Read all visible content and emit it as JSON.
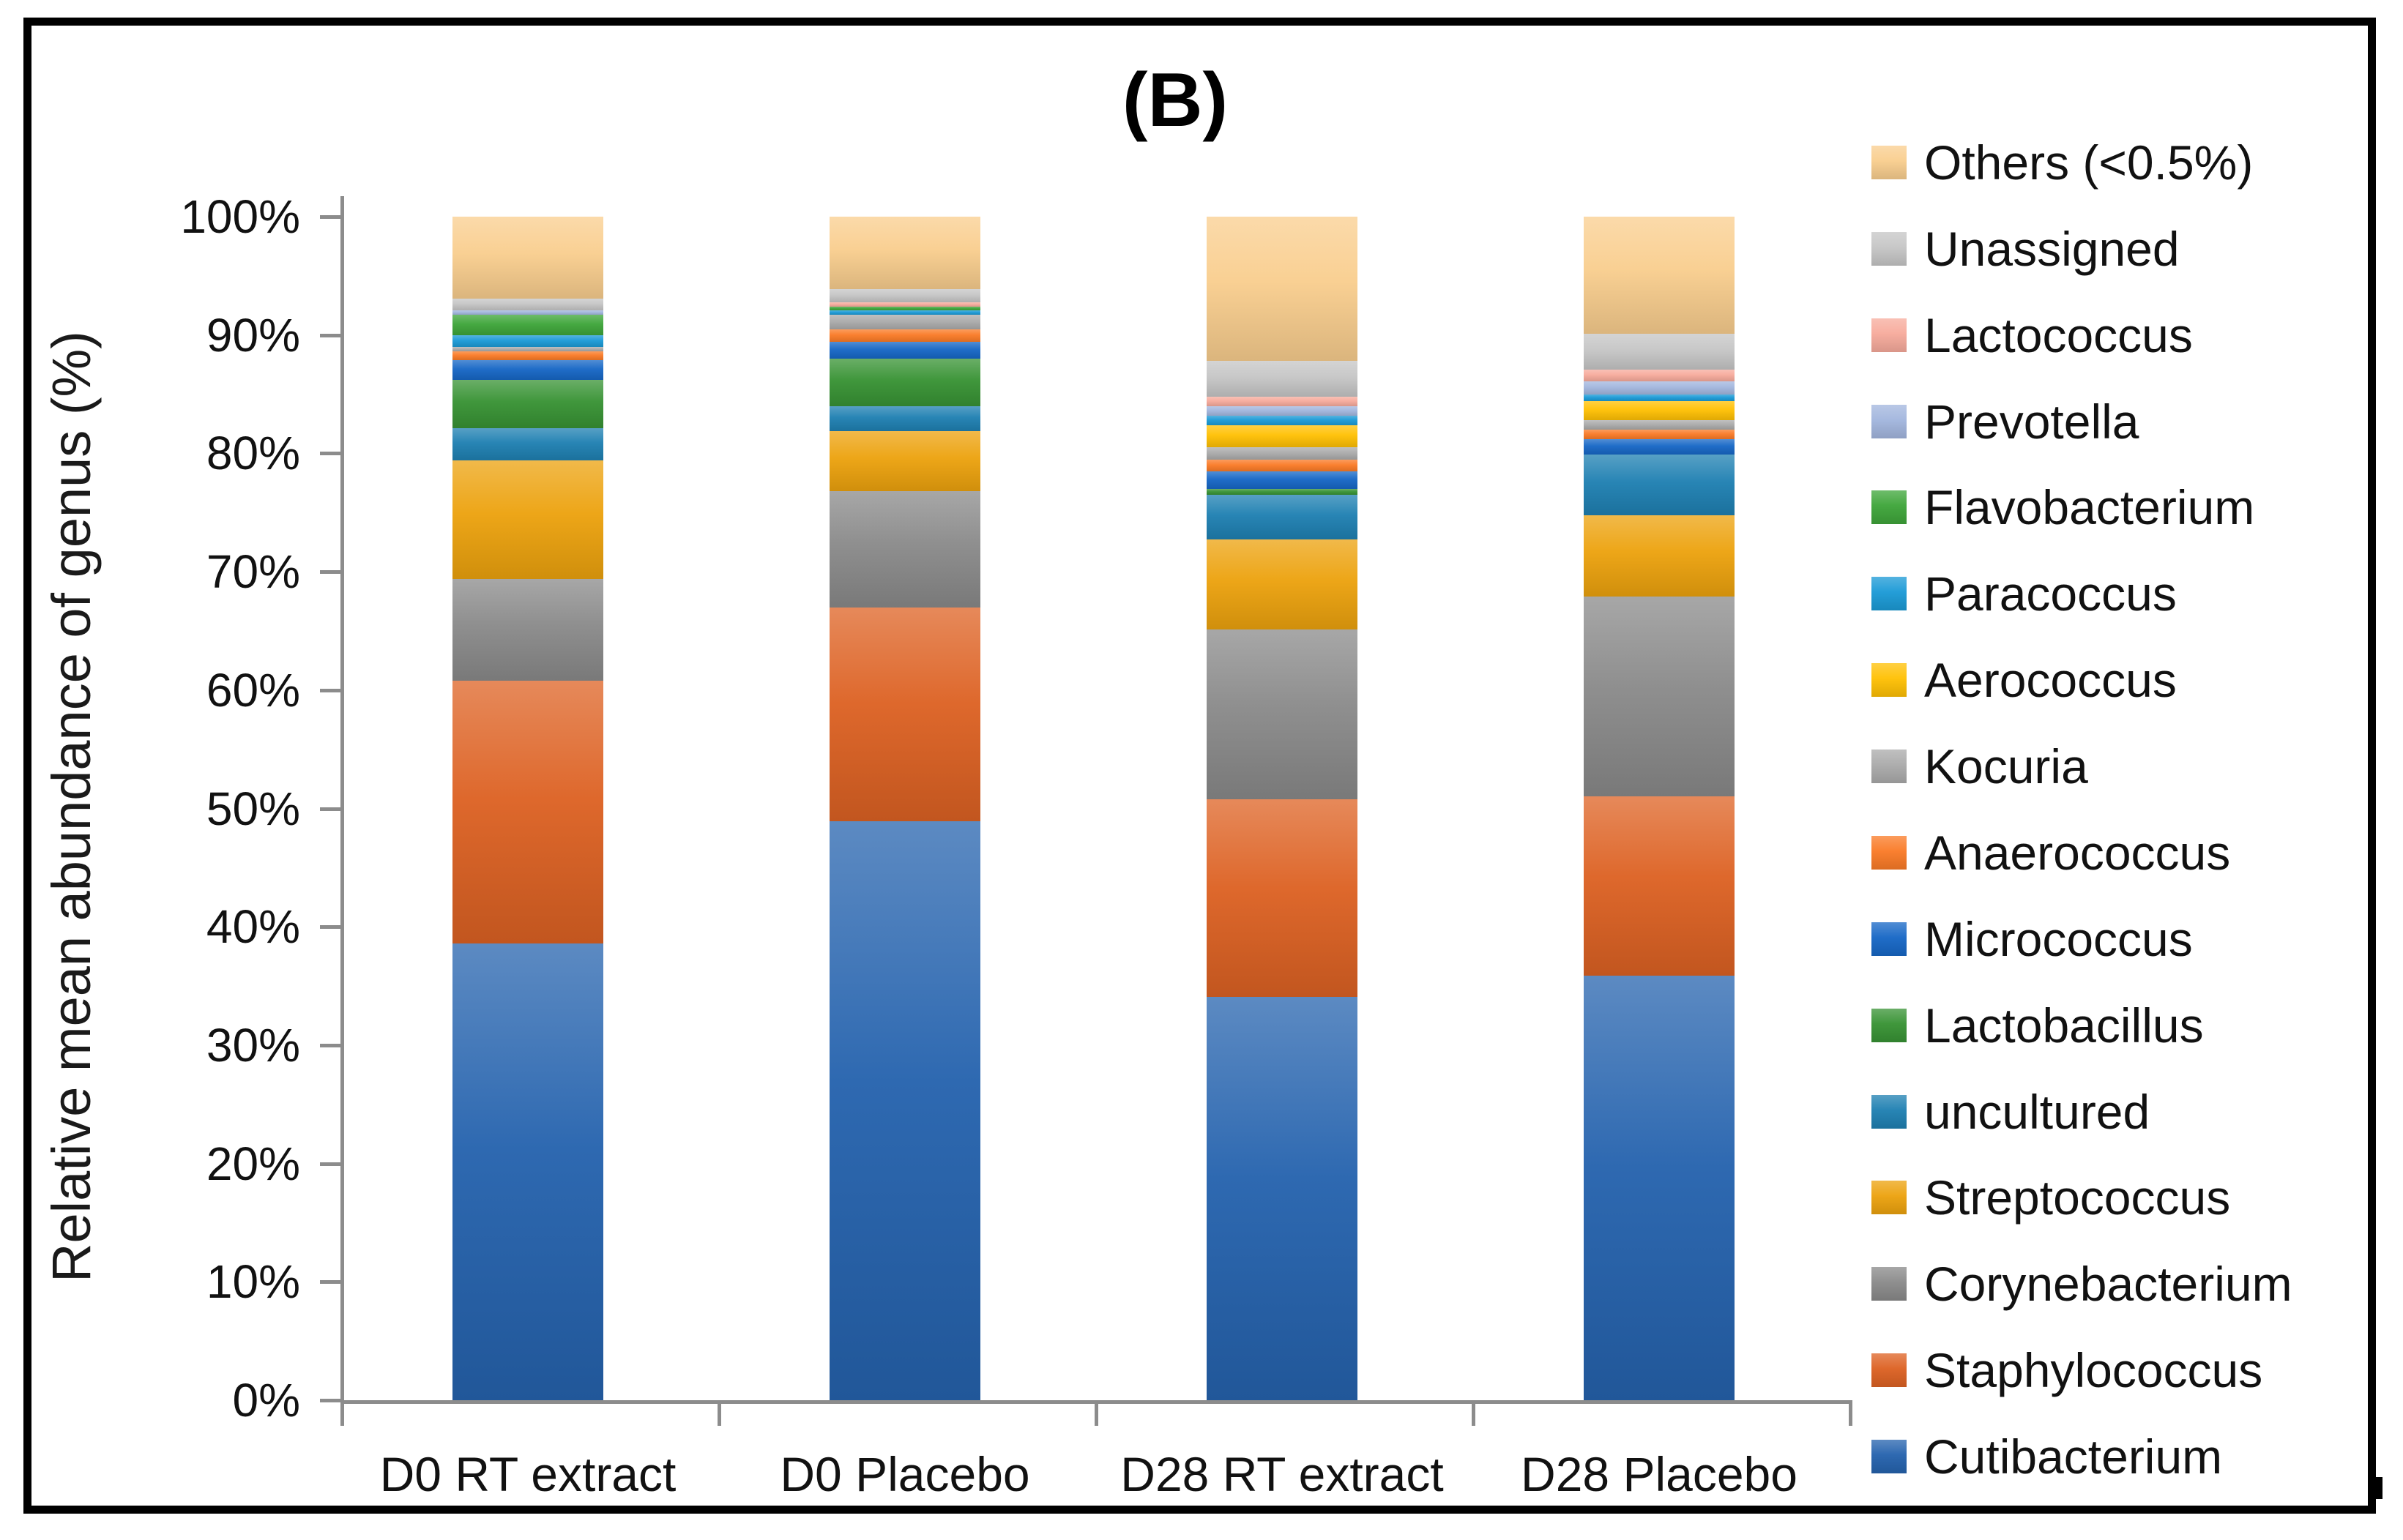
{
  "figure": {
    "panel_title": "(B)"
  },
  "axes": {
    "y_title": "Relative mean abundance of genus (%)",
    "y_tick_labels": [
      "0%",
      "10%",
      "20%",
      "30%",
      "40%",
      "50%",
      "60%",
      "70%",
      "80%",
      "90%",
      "100%"
    ],
    "x_category_labels": [
      "D0 RT extract",
      "D0 Placebo",
      "D28 RT extract",
      "D28 Placebo"
    ]
  },
  "colors": {
    "axis_line": "#8C8C8C",
    "text": "#111111",
    "frame": "#000000"
  },
  "chart_data": {
    "type": "bar",
    "stacked": true,
    "title": "(B)",
    "xlabel": "",
    "ylabel": "Relative mean abundance of genus (%)",
    "ylim": [
      0,
      100
    ],
    "y_unit": "percent",
    "grid": false,
    "legend_position": "right",
    "legend_order_note": "Legend listed top to bottom matches stack order top to bottom",
    "categories": [
      "D0 RT extract",
      "D0 Placebo",
      "D28 RT extract",
      "D28 Placebo"
    ],
    "series": [
      {
        "name": "Others (<0.5%)",
        "color": "#F9CE8E",
        "values": [
          6.9,
          6.1,
          12.2,
          9.9
        ]
      },
      {
        "name": "Unassigned",
        "color": "#C6C6C6",
        "values": [
          1.0,
          1.1,
          3.0,
          3.0
        ]
      },
      {
        "name": "Lactococcus",
        "color": "#F7AB9C",
        "values": [
          0,
          0.4,
          0.8,
          1.0
        ]
      },
      {
        "name": "Prevotella",
        "color": "#A2B6DE",
        "values": [
          0.4,
          0,
          0.8,
          1.1
        ]
      },
      {
        "name": "Flavobacterium",
        "color": "#3EA53A",
        "values": [
          1.7,
          0.3,
          0,
          0
        ]
      },
      {
        "name": "Paracoccus",
        "color": "#1B9AD6",
        "values": [
          1.0,
          0.4,
          0.8,
          0.6
        ]
      },
      {
        "name": "Aerococcus",
        "color": "#FFC004",
        "values": [
          0,
          0,
          1.9,
          1.6
        ]
      },
      {
        "name": "Kocuria",
        "color": "#ABABAB",
        "values": [
          0.4,
          1.2,
          1.0,
          0.8
        ]
      },
      {
        "name": "Anaerococcus",
        "color": "#FA7B27",
        "values": [
          0.7,
          1.1,
          1.0,
          0.8
        ]
      },
      {
        "name": "Micrococcus",
        "color": "#1767C6",
        "values": [
          1.7,
          1.4,
          1.5,
          1.3
        ]
      },
      {
        "name": "Lactobacillus",
        "color": "#389334",
        "values": [
          4.1,
          4.0,
          0.5,
          0
        ]
      },
      {
        "name": "uncultured",
        "color": "#1F80B2",
        "values": [
          2.7,
          2.1,
          3.8,
          5.1
        ]
      },
      {
        "name": "Streptococcus",
        "color": "#ECA20E",
        "values": [
          10.0,
          5.1,
          7.6,
          6.9
        ]
      },
      {
        "name": "Corynebacterium",
        "color": "#8A8A8A",
        "values": [
          8.6,
          9.8,
          14.3,
          16.9
        ]
      },
      {
        "name": "Staphylococcus",
        "color": "#DD6223",
        "values": [
          22.2,
          18.1,
          16.7,
          15.1
        ]
      },
      {
        "name": "Cutibacterium",
        "color": "#2563AE",
        "values": [
          38.6,
          48.9,
          34.1,
          35.9
        ]
      }
    ]
  }
}
